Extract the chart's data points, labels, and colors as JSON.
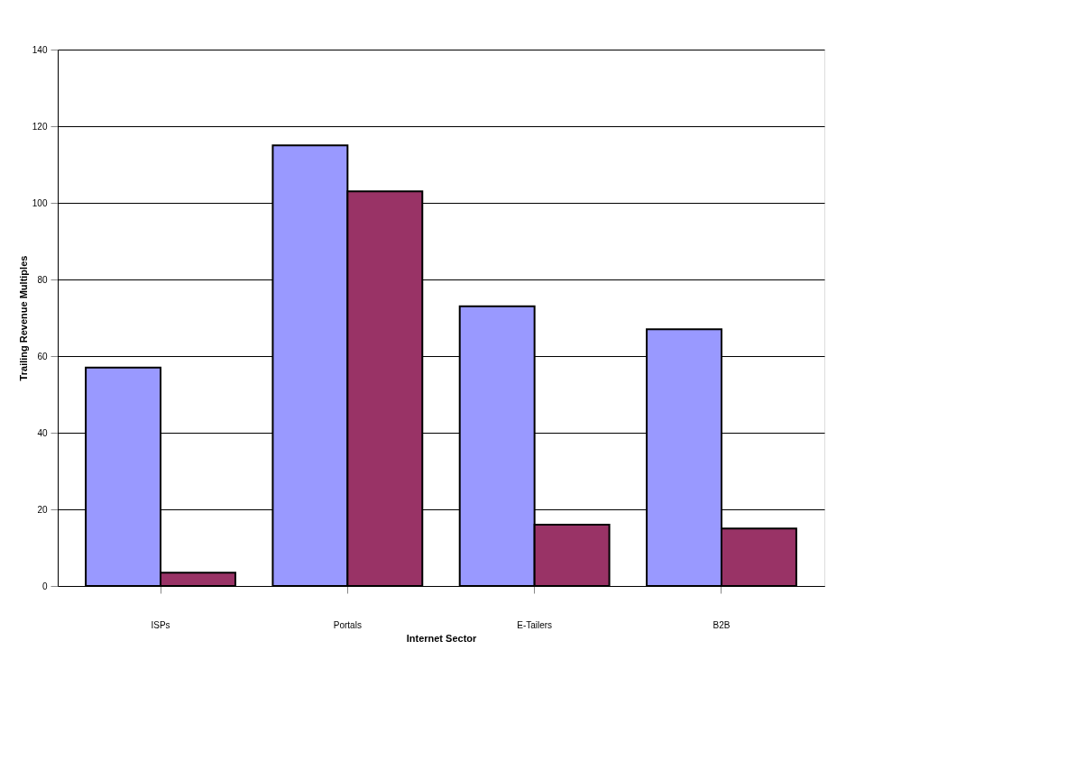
{
  "chart_data": {
    "type": "bar",
    "xlabel": "Internet Sector",
    "ylabel": "Trailing Revenue Multiples",
    "categories": [
      "ISPs",
      "Portals",
      "E-Tailers",
      "B2B"
    ],
    "series": [
      {
        "color": "#9999ff",
        "values": [
          57,
          115,
          73,
          67
        ]
      },
      {
        "color": "#993366",
        "values": [
          3.5,
          103,
          16,
          15
        ]
      }
    ],
    "ylim": [
      0,
      140
    ],
    "yticks": [
      0,
      20,
      40,
      60,
      80,
      100,
      120,
      140
    ],
    "grid": "y",
    "legend": false
  }
}
